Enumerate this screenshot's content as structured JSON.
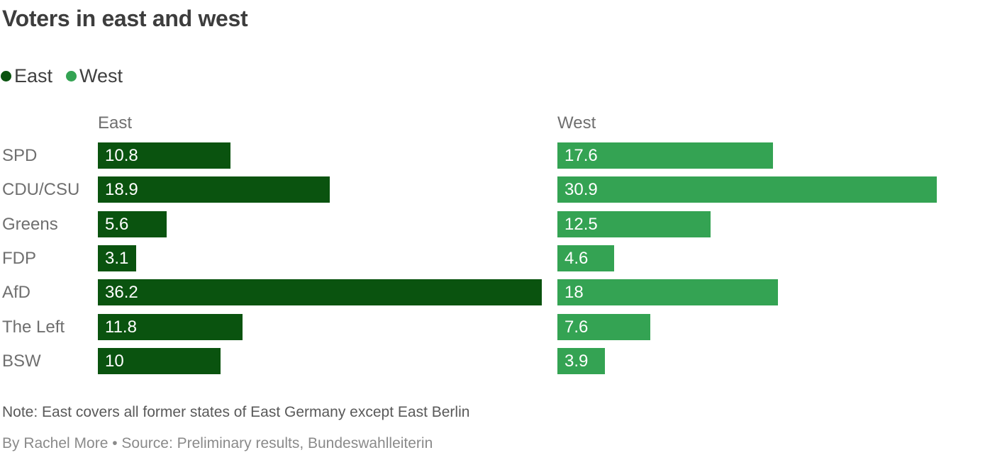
{
  "title": "Voters in east and west",
  "legend": [
    {
      "label": "East",
      "color": "#0a530f",
      "icon": "legend-dot-east"
    },
    {
      "label": "West",
      "color": "#34a353",
      "icon": "legend-dot-west"
    }
  ],
  "chart_data": {
    "type": "bar",
    "orientation": "horizontal",
    "title": "Voters in east and west",
    "categories": [
      "SPD",
      "CDU/CSU",
      "Greens",
      "FDP",
      "AfD",
      "The Left",
      "BSW"
    ],
    "series": [
      {
        "name": "East",
        "color": "#0a530f",
        "values": [
          10.8,
          18.9,
          5.6,
          3.1,
          36.2,
          11.8,
          10
        ],
        "labels": [
          "10.8",
          "18.9",
          "5.6",
          "3.1",
          "36.2",
          "11.8",
          "10"
        ]
      },
      {
        "name": "West",
        "color": "#34a353",
        "values": [
          17.6,
          30.9,
          12.5,
          4.6,
          18,
          7.6,
          3.9
        ],
        "labels": [
          "17.6",
          "30.9",
          "12.5",
          "4.6",
          "18",
          "7.6",
          "3.9"
        ]
      }
    ],
    "xlim": [
      0,
      36.2
    ],
    "grid": false,
    "legend_position": "top-left",
    "value_labels_inside_bars": true,
    "unit": "percent"
  },
  "note": "Note: East covers all former states of East Germany except East Berlin",
  "byline": "By Rachel More • Source: Preliminary results, Bundeswahlleiterin"
}
